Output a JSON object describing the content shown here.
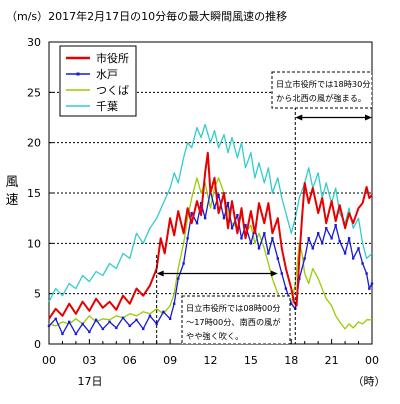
{
  "chart_data": {
    "type": "line",
    "title": "（m/s）2017年2月17日の10分毎の最大瞬間風速の推移",
    "ylabel": "風速",
    "xlabel_unit": "（時）",
    "x_date_label": "17日",
    "ylim": [
      0,
      30
    ],
    "xlim_hours": [
      0,
      24
    ],
    "y_ticks": [
      "0",
      "5",
      "10",
      "15",
      "20",
      "25",
      "30"
    ],
    "x_ticks": [
      "00",
      "03",
      "06",
      "09",
      "12",
      "15",
      "18",
      "21",
      "00"
    ],
    "grid": "horizontal-dotted",
    "legend_position": "top-left",
    "annotations": {
      "right_note": [
        "日立市役所では18時30分",
        "から北西の風が強まる。"
      ],
      "bottom_note": [
        "日立市役所では08時00分",
        "～17時00分、南西の風が",
        "やや強く吹く。"
      ]
    },
    "series": [
      {
        "name": "市役所",
        "color": "#e60000",
        "values": [
          [
            0.0,
            2.5
          ],
          [
            0.5,
            3.5
          ],
          [
            1.0,
            2.8
          ],
          [
            1.5,
            4.0
          ],
          [
            2.0,
            3.0
          ],
          [
            2.5,
            4.2
          ],
          [
            3.0,
            3.3
          ],
          [
            3.5,
            4.5
          ],
          [
            4.0,
            3.6
          ],
          [
            4.5,
            4.2
          ],
          [
            5.0,
            3.4
          ],
          [
            5.5,
            4.8
          ],
          [
            6.0,
            4.0
          ],
          [
            6.5,
            5.5
          ],
          [
            7.0,
            4.8
          ],
          [
            7.5,
            5.8
          ],
          [
            8.0,
            7.5
          ],
          [
            8.3,
            10.5
          ],
          [
            8.6,
            9.0
          ],
          [
            9.0,
            12.5
          ],
          [
            9.3,
            10.8
          ],
          [
            9.6,
            13.2
          ],
          [
            10.0,
            11.0
          ],
          [
            10.3,
            13.5
          ],
          [
            10.6,
            12.0
          ],
          [
            11.0,
            14.2
          ],
          [
            11.3,
            12.8
          ],
          [
            11.6,
            17.0
          ],
          [
            11.8,
            19.0
          ],
          [
            12.0,
            15.0
          ],
          [
            12.3,
            16.5
          ],
          [
            12.6,
            13.0
          ],
          [
            13.0,
            15.0
          ],
          [
            13.3,
            11.5
          ],
          [
            13.6,
            14.2
          ],
          [
            14.0,
            11.0
          ],
          [
            14.3,
            13.5
          ],
          [
            14.6,
            10.5
          ],
          [
            15.0,
            13.2
          ],
          [
            15.3,
            11.0
          ],
          [
            15.6,
            14.0
          ],
          [
            16.0,
            12.0
          ],
          [
            16.3,
            14.0
          ],
          [
            16.6,
            11.0
          ],
          [
            17.0,
            12.5
          ],
          [
            17.3,
            9.5
          ],
          [
            17.6,
            7.5
          ],
          [
            18.0,
            5.5
          ],
          [
            18.2,
            4.2
          ],
          [
            18.4,
            3.8
          ],
          [
            18.6,
            8.5
          ],
          [
            18.8,
            12.5
          ],
          [
            19.0,
            16.0
          ],
          [
            19.3,
            14.0
          ],
          [
            19.6,
            15.5
          ],
          [
            20.0,
            13.0
          ],
          [
            20.3,
            14.5
          ],
          [
            20.6,
            12.0
          ],
          [
            21.0,
            14.2
          ],
          [
            21.3,
            12.2
          ],
          [
            21.6,
            13.8
          ],
          [
            22.0,
            11.5
          ],
          [
            22.3,
            13.0
          ],
          [
            22.6,
            12.0
          ],
          [
            23.0,
            13.5
          ],
          [
            23.3,
            14.0
          ],
          [
            23.6,
            15.6
          ],
          [
            23.8,
            14.5
          ],
          [
            24.0,
            14.8
          ]
        ]
      },
      {
        "name": "水戸",
        "color": "#1a1ad6",
        "values": [
          [
            0.0,
            1.8
          ],
          [
            0.5,
            2.5
          ],
          [
            1.0,
            1.0
          ],
          [
            1.5,
            2.2
          ],
          [
            2.0,
            1.0
          ],
          [
            2.5,
            2.0
          ],
          [
            3.0,
            1.2
          ],
          [
            3.5,
            2.4
          ],
          [
            4.0,
            1.5
          ],
          [
            4.5,
            2.2
          ],
          [
            5.0,
            1.6
          ],
          [
            5.5,
            2.6
          ],
          [
            6.0,
            1.8
          ],
          [
            6.5,
            2.4
          ],
          [
            7.0,
            1.5
          ],
          [
            7.5,
            2.8
          ],
          [
            8.0,
            2.0
          ],
          [
            8.5,
            3.2
          ],
          [
            9.0,
            2.5
          ],
          [
            9.3,
            4.0
          ],
          [
            9.6,
            6.5
          ],
          [
            10.0,
            8.0
          ],
          [
            10.3,
            10.5
          ],
          [
            10.6,
            13.0
          ],
          [
            11.0,
            12.0
          ],
          [
            11.3,
            14.0
          ],
          [
            11.6,
            12.5
          ],
          [
            12.0,
            15.2
          ],
          [
            12.3,
            13.5
          ],
          [
            12.6,
            14.8
          ],
          [
            13.0,
            12.5
          ],
          [
            13.3,
            14.0
          ],
          [
            13.6,
            11.5
          ],
          [
            14.0,
            12.8
          ],
          [
            14.3,
            10.5
          ],
          [
            14.6,
            11.8
          ],
          [
            15.0,
            10.0
          ],
          [
            15.3,
            11.5
          ],
          [
            15.6,
            9.5
          ],
          [
            16.0,
            11.0
          ],
          [
            16.3,
            9.0
          ],
          [
            16.6,
            10.5
          ],
          [
            17.0,
            8.5
          ],
          [
            17.3,
            7.0
          ],
          [
            17.6,
            5.5
          ],
          [
            18.0,
            4.0
          ],
          [
            18.3,
            3.5
          ],
          [
            18.6,
            6.5
          ],
          [
            19.0,
            8.5
          ],
          [
            19.3,
            10.5
          ],
          [
            19.6,
            9.5
          ],
          [
            20.0,
            11.0
          ],
          [
            20.3,
            10.0
          ],
          [
            20.6,
            11.5
          ],
          [
            21.0,
            10.5
          ],
          [
            21.3,
            11.8
          ],
          [
            21.6,
            10.2
          ],
          [
            22.0,
            9.0
          ],
          [
            22.3,
            10.5
          ],
          [
            22.6,
            8.5
          ],
          [
            23.0,
            9.5
          ],
          [
            23.3,
            8.0
          ],
          [
            23.6,
            7.0
          ],
          [
            23.8,
            5.5
          ],
          [
            24.0,
            6.0
          ]
        ]
      },
      {
        "name": "つくば",
        "color": "#99cc00",
        "values": [
          [
            0.0,
            2.0
          ],
          [
            0.5,
            1.8
          ],
          [
            1.0,
            2.2
          ],
          [
            1.5,
            2.0
          ],
          [
            2.0,
            2.5
          ],
          [
            2.5,
            2.0
          ],
          [
            3.0,
            2.8
          ],
          [
            3.5,
            2.2
          ],
          [
            4.0,
            2.5
          ],
          [
            4.5,
            2.4
          ],
          [
            5.0,
            2.8
          ],
          [
            5.5,
            2.6
          ],
          [
            6.0,
            3.0
          ],
          [
            6.5,
            2.8
          ],
          [
            7.0,
            3.2
          ],
          [
            7.5,
            3.0
          ],
          [
            8.0,
            3.5
          ],
          [
            8.5,
            3.0
          ],
          [
            9.0,
            3.8
          ],
          [
            9.3,
            5.0
          ],
          [
            9.6,
            7.5
          ],
          [
            10.0,
            10.0
          ],
          [
            10.3,
            12.5
          ],
          [
            10.6,
            14.5
          ],
          [
            11.0,
            16.5
          ],
          [
            11.3,
            15.0
          ],
          [
            11.6,
            16.0
          ],
          [
            12.0,
            13.5
          ],
          [
            12.3,
            15.5
          ],
          [
            12.6,
            16.5
          ],
          [
            13.0,
            15.0
          ],
          [
            13.3,
            13.0
          ],
          [
            13.6,
            12.0
          ],
          [
            14.0,
            11.5
          ],
          [
            14.3,
            12.8
          ],
          [
            14.6,
            11.0
          ],
          [
            15.0,
            11.8
          ],
          [
            15.3,
            10.0
          ],
          [
            15.6,
            11.0
          ],
          [
            16.0,
            9.5
          ],
          [
            16.3,
            8.0
          ],
          [
            16.6,
            6.5
          ],
          [
            17.0,
            5.0
          ],
          [
            17.3,
            4.0
          ],
          [
            17.6,
            3.5
          ],
          [
            18.0,
            4.0
          ],
          [
            18.3,
            6.0
          ],
          [
            18.6,
            10.0
          ],
          [
            18.8,
            9.0
          ],
          [
            19.0,
            7.0
          ],
          [
            19.3,
            6.0
          ],
          [
            19.6,
            7.5
          ],
          [
            20.0,
            6.5
          ],
          [
            20.3,
            5.5
          ],
          [
            20.6,
            4.5
          ],
          [
            21.0,
            3.8
          ],
          [
            21.3,
            2.8
          ],
          [
            21.6,
            2.2
          ],
          [
            22.0,
            1.5
          ],
          [
            22.3,
            2.0
          ],
          [
            22.6,
            1.6
          ],
          [
            23.0,
            2.2
          ],
          [
            23.3,
            2.0
          ],
          [
            23.6,
            2.4
          ],
          [
            24.0,
            2.4
          ]
        ]
      },
      {
        "name": "千葉",
        "color": "#33cccc",
        "values": [
          [
            0.0,
            4.2
          ],
          [
            0.5,
            5.5
          ],
          [
            1.0,
            4.8
          ],
          [
            1.5,
            6.0
          ],
          [
            2.0,
            5.5
          ],
          [
            2.5,
            6.8
          ],
          [
            3.0,
            6.2
          ],
          [
            3.5,
            7.2
          ],
          [
            4.0,
            6.8
          ],
          [
            4.5,
            8.0
          ],
          [
            5.0,
            7.5
          ],
          [
            5.5,
            9.0
          ],
          [
            6.0,
            8.5
          ],
          [
            6.5,
            11.0
          ],
          [
            7.0,
            10.0
          ],
          [
            7.5,
            11.5
          ],
          [
            8.0,
            12.5
          ],
          [
            8.5,
            14.0
          ],
          [
            9.0,
            15.5
          ],
          [
            9.3,
            17.0
          ],
          [
            9.6,
            16.0
          ],
          [
            10.0,
            18.5
          ],
          [
            10.3,
            20.0
          ],
          [
            10.6,
            19.5
          ],
          [
            11.0,
            21.5
          ],
          [
            11.3,
            20.5
          ],
          [
            11.6,
            21.8
          ],
          [
            12.0,
            20.0
          ],
          [
            12.3,
            21.2
          ],
          [
            12.6,
            19.5
          ],
          [
            13.0,
            20.8
          ],
          [
            13.3,
            19.0
          ],
          [
            13.6,
            20.5
          ],
          [
            14.0,
            18.5
          ],
          [
            14.3,
            20.0
          ],
          [
            14.6,
            17.5
          ],
          [
            15.0,
            19.0
          ],
          [
            15.3,
            16.5
          ],
          [
            15.6,
            18.0
          ],
          [
            16.0,
            16.0
          ],
          [
            16.3,
            17.5
          ],
          [
            16.6,
            15.0
          ],
          [
            17.0,
            16.5
          ],
          [
            17.3,
            14.5
          ],
          [
            17.6,
            13.0
          ],
          [
            18.0,
            11.0
          ],
          [
            18.3,
            12.5
          ],
          [
            18.6,
            14.5
          ],
          [
            19.0,
            16.0
          ],
          [
            19.3,
            17.5
          ],
          [
            19.6,
            15.5
          ],
          [
            20.0,
            17.0
          ],
          [
            20.3,
            14.5
          ],
          [
            20.6,
            16.0
          ],
          [
            21.0,
            14.0
          ],
          [
            21.3,
            15.5
          ],
          [
            21.6,
            13.0
          ],
          [
            22.0,
            12.0
          ],
          [
            22.3,
            13.5
          ],
          [
            22.6,
            11.5
          ],
          [
            23.0,
            12.5
          ],
          [
            23.3,
            10.0
          ],
          [
            23.6,
            8.5
          ],
          [
            24.0,
            9.0
          ]
        ]
      }
    ]
  }
}
